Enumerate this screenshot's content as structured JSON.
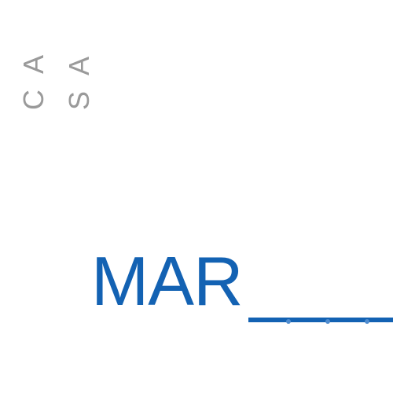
{
  "side_text": {
    "left_column": "CA",
    "right_column": "SA"
  },
  "main_word": "MAR",
  "colors": {
    "accent": "#1362b3",
    "side_text": "#9a9a9a",
    "background": "#ffffff"
  }
}
